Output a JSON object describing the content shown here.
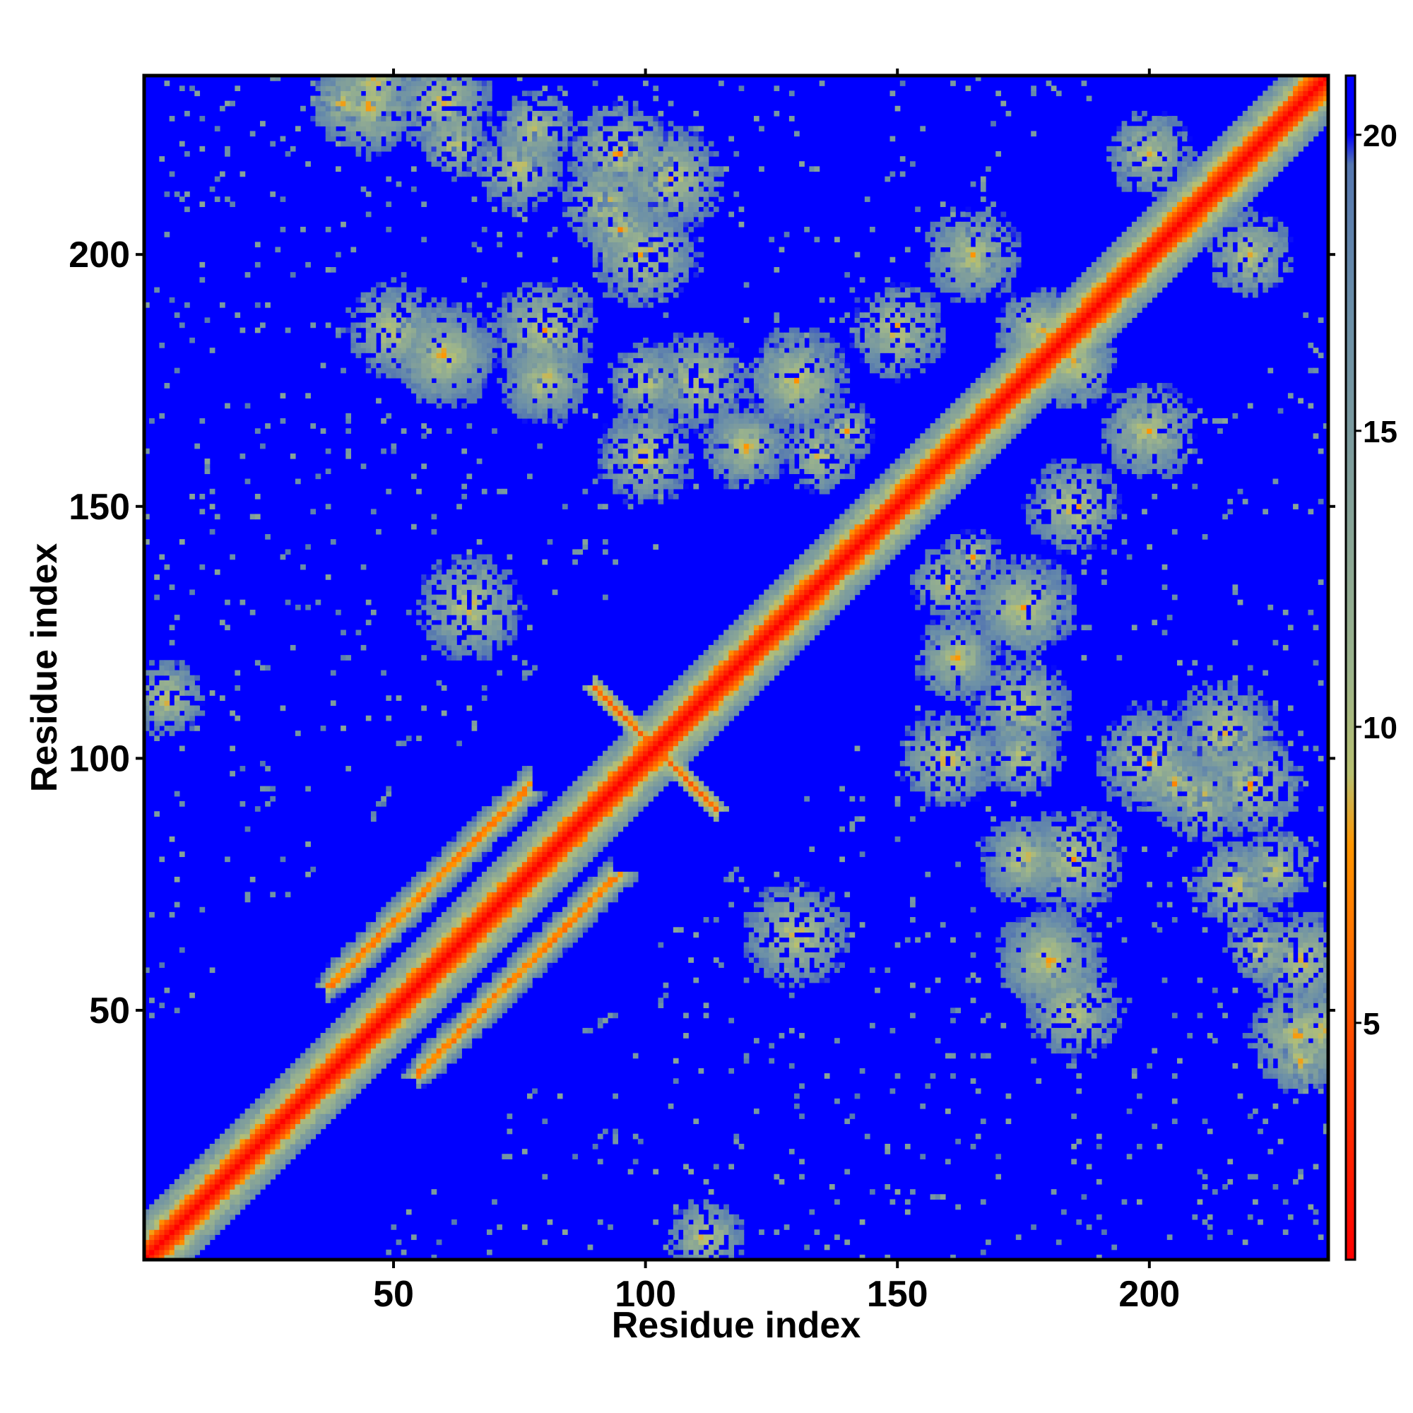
{
  "chart_data": {
    "type": "heatmap",
    "title": "",
    "xlabel": "Residue index",
    "ylabel": "Residue index",
    "xlim": [
      1,
      235
    ],
    "ylim": [
      1,
      235
    ],
    "xticks": [
      50,
      100,
      150,
      200
    ],
    "yticks": [
      50,
      100,
      150,
      200
    ],
    "colorbar": {
      "range": [
        1,
        21
      ],
      "ticks": [
        5,
        10,
        15,
        20
      ],
      "stops": [
        {
          "value": 1,
          "color": "#ff0000"
        },
        {
          "value": 4,
          "color": "#ff3a00"
        },
        {
          "value": 6,
          "color": "#ff6a00"
        },
        {
          "value": 8,
          "color": "#ff9600"
        },
        {
          "value": 9.2,
          "color": "#b8c070"
        },
        {
          "value": 11,
          "color": "#9cb48c"
        },
        {
          "value": 14,
          "color": "#82a09a"
        },
        {
          "value": 17,
          "color": "#6b8fa8"
        },
        {
          "value": 19.5,
          "color": "#5577b0"
        },
        {
          "value": 20,
          "color": "#0000ff"
        },
        {
          "value": 21,
          "color": "#0000ff"
        }
      ]
    },
    "background_value": 21,
    "features": {
      "diagonal": {
        "from": 1,
        "to": 235
      },
      "antiparallel_cross": {
        "center": [
          102,
          102
        ],
        "half_length": 12
      },
      "parallel_bands": [
        {
          "x": [
            38,
            76
          ],
          "offset": 17
        },
        {
          "x": [
            55,
            95
          ],
          "offset": -18
        }
      ],
      "contact_patches": [
        [
          210,
          92
        ],
        [
          235,
          46
        ],
        [
          222,
          62
        ],
        [
          217,
          75
        ],
        [
          185,
          50
        ],
        [
          185,
          80
        ],
        [
          220,
          95
        ],
        [
          175,
          110
        ],
        [
          160,
          100
        ],
        [
          165,
          200
        ],
        [
          200,
          165
        ],
        [
          185,
          178
        ],
        [
          178,
          185
        ],
        [
          162,
          120
        ],
        [
          120,
          162
        ],
        [
          175,
          130
        ],
        [
          130,
          175
        ],
        [
          200,
          220
        ],
        [
          220,
          200
        ],
        [
          60,
          180
        ],
        [
          80,
          175
        ],
        [
          100,
          175
        ],
        [
          180,
          60
        ],
        [
          175,
          80
        ],
        [
          112,
          5
        ],
        [
          40,
          230
        ],
        [
          60,
          230
        ],
        [
          78,
          225
        ],
        [
          105,
          215
        ],
        [
          150,
          185
        ],
        [
          200,
          100
        ],
        [
          205,
          95
        ],
        [
          230,
          45
        ],
        [
          130,
          65
        ],
        [
          135,
          160
        ],
        [
          140,
          165
        ]
      ]
    }
  }
}
